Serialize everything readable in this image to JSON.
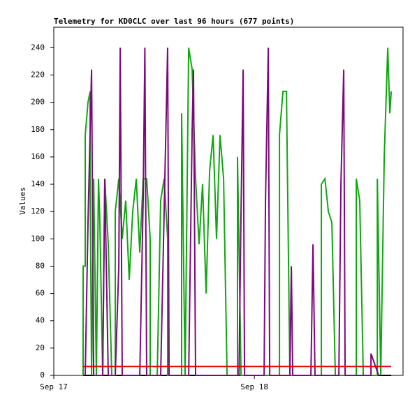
{
  "chart_data": {
    "type": "line",
    "title": "Telemetry for KD0CLC over last 96 hours (677 points)",
    "y_label": "Values",
    "xlim": [
      0,
      41.8
    ],
    "xticks": [
      {
        "value": 0,
        "label": "Sep 17"
      },
      {
        "value": 24,
        "label": "Sep 18"
      }
    ],
    "ylim": [
      0,
      255
    ],
    "yticks": [
      0,
      20,
      40,
      60,
      80,
      100,
      120,
      140,
      160,
      180,
      200,
      220,
      240
    ],
    "series": [
      {
        "color": "#000000",
        "x": [
          3.51,
          40.39
        ],
        "values": [
          0,
          0
        ]
      },
      {
        "color": "#11a611",
        "x": [
          3.51,
          3.51,
          3.76,
          3.76,
          4.1,
          4.35,
          4.35,
          4.52,
          4.77,
          5.1,
          5.35,
          5.52,
          5.85,
          6.1,
          6.52,
          6.94,
          7.36,
          7.36,
          7.78,
          8.19,
          8.61,
          9.03,
          9.45,
          9.87,
          10.29,
          10.7,
          11.12,
          11.54,
          11.54,
          12.38,
          12.79,
          13.21,
          13.63,
          13.63,
          15.3,
          15.3,
          15.72,
          16.14,
          16.56,
          16.97,
          17.39,
          17.81,
          18.23,
          18.65,
          19.07,
          19.48,
          19.9,
          20.32,
          20.74,
          21.99,
          21.99,
          22.41,
          27.01,
          27.01,
          27.43,
          27.85,
          28.26,
          32.03,
          32.03,
          32.45,
          32.86,
          33.28,
          33.7,
          36.21,
          36.21,
          36.62,
          37.04,
          38.72,
          38.72,
          39.13,
          39.55,
          39.97,
          40.22,
          40.39
        ],
        "values": [
          0,
          80,
          80,
          176,
          200,
          208,
          145,
          0,
          144,
          0,
          144,
          112,
          0,
          144,
          96,
          0,
          0,
          120,
          144,
          100,
          128,
          70,
          120,
          144,
          90,
          144,
          144,
          100,
          0,
          0,
          128,
          144,
          100,
          0,
          0,
          192,
          0,
          240,
          224,
          144,
          96,
          140,
          60,
          150,
          176,
          100,
          176,
          144,
          0,
          0,
          160,
          0,
          0,
          176,
          208,
          208,
          0,
          0,
          140,
          144,
          120,
          112,
          0,
          0,
          144,
          128,
          0,
          0,
          144,
          0,
          160,
          240,
          192,
          208
        ]
      },
      {
        "color": "#7a0a7a",
        "x": [
          3.76,
          4.1,
          4.52,
          4.77,
          5.85,
          6.1,
          6.52,
          7.36,
          7.78,
          7.95,
          8.19,
          10.29,
          10.7,
          10.9,
          11.12,
          12.79,
          13.21,
          13.63,
          13.8,
          16.14,
          16.56,
          16.72,
          16.97,
          22.16,
          22.41,
          22.66,
          22.83,
          25.17,
          25.34,
          25.67,
          25.84,
          28.26,
          28.43,
          28.6,
          30.77,
          31.02,
          31.27,
          34.12,
          34.37,
          34.7,
          34.87,
          37.96,
          37.96,
          38.88
        ],
        "values": [
          0,
          112,
          224,
          0,
          0,
          144,
          0,
          0,
          80,
          240,
          0,
          0,
          130,
          240,
          0,
          0,
          120,
          240,
          0,
          0,
          180,
          224,
          0,
          0,
          120,
          224,
          0,
          0,
          128,
          240,
          0,
          0,
          80,
          0,
          0,
          96,
          0,
          0,
          140,
          224,
          0,
          0,
          16,
          0
        ]
      },
      {
        "color": "#e00000",
        "x": [
          3.51,
          40.39
        ],
        "values": [
          6.5,
          6.5
        ]
      }
    ]
  }
}
